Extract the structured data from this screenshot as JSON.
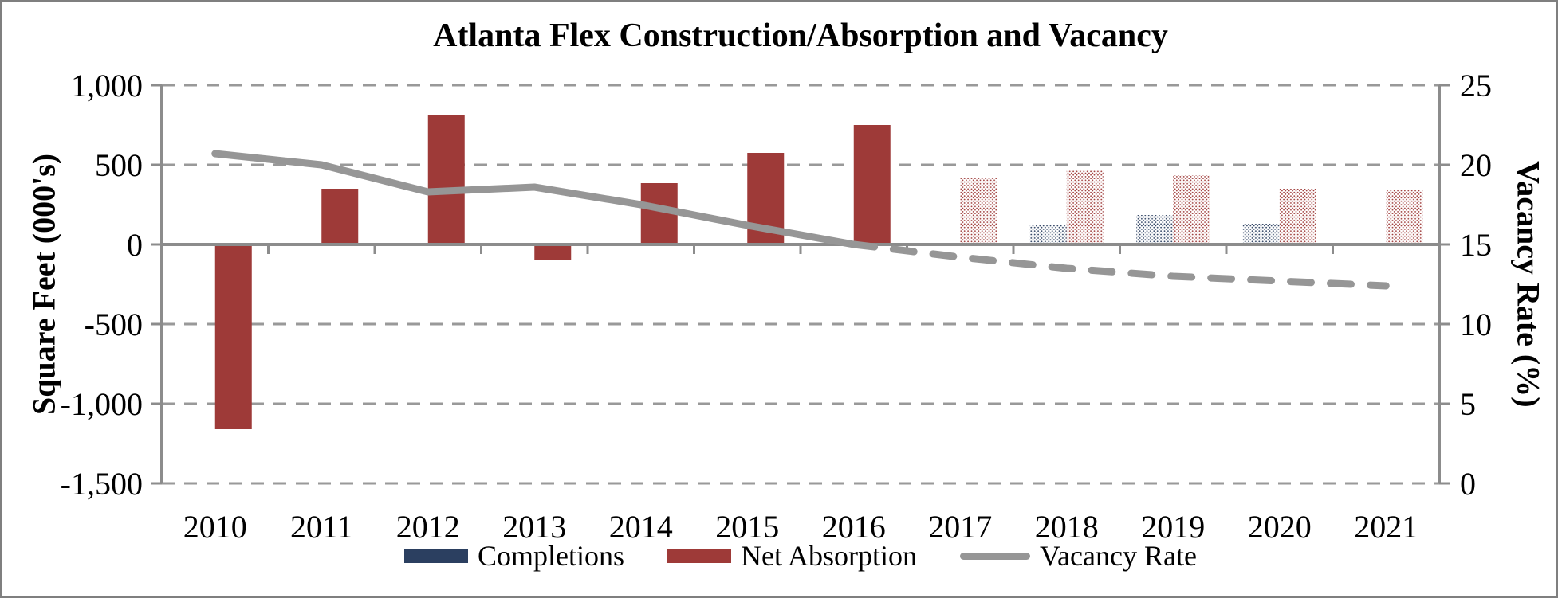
{
  "chart_data": {
    "type": "bar",
    "title": "Atlanta Flex Construction/Absorption and Vacancy",
    "categories": [
      "2010",
      "2011",
      "2012",
      "2013",
      "2014",
      "2015",
      "2016",
      "2017",
      "2018",
      "2019",
      "2020",
      "2021"
    ],
    "series": [
      {
        "name": "Completions",
        "kind": "bar",
        "axis": "left",
        "color": "#2B3F60",
        "values": [
          0,
          0,
          0,
          0,
          0,
          0,
          0,
          0,
          125,
          185,
          130,
          0
        ]
      },
      {
        "name": "Net Absorption",
        "kind": "bar",
        "axis": "left",
        "color": "#9E3A38",
        "values": [
          -1160,
          350,
          810,
          -95,
          385,
          575,
          750,
          415,
          465,
          435,
          350,
          340
        ]
      },
      {
        "name": "Vacancy Rate",
        "kind": "line",
        "axis": "right",
        "color": "#969696",
        "values": [
          20.7,
          20.0,
          18.3,
          18.6,
          17.5,
          16.2,
          15.0,
          14.2,
          13.5,
          13.0,
          12.7,
          12.4
        ]
      }
    ],
    "forecast_start_index": 7,
    "line_dashed_from_index": 6,
    "left_axis": {
      "title": "Square Feet (000's)",
      "min": -1500,
      "max": 1000,
      "step": 500,
      "tick_values": [
        1000,
        500,
        0,
        -500,
        -1000,
        -1500
      ],
      "tick_labels": [
        "1,000",
        "500",
        "0",
        "-500",
        "-1,000",
        "-1,500"
      ]
    },
    "right_axis": {
      "title": "Vacancy Rate (%)",
      "min": 0,
      "max": 25,
      "step": 5,
      "tick_values": [
        25,
        20,
        15,
        10,
        5,
        0
      ],
      "tick_labels": [
        "25",
        "20",
        "15",
        "10",
        "5",
        "0"
      ]
    },
    "grid": {
      "dashed": true,
      "color": "#999999",
      "axis_color": "#8C8C8C"
    },
    "legend_position": "bottom"
  }
}
